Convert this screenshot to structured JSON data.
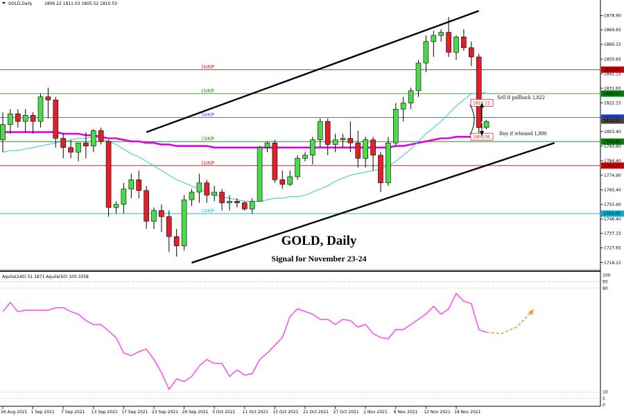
{
  "header": {
    "symbol": "GOLD,Daily",
    "ohlc": "1806.22 1811.03 1805.52 1810.53"
  },
  "chart_data": {
    "type": "candlestick",
    "title": "GOLD, Daily",
    "subtitle": "Signal for November 23-24",
    "ylim": [
      1713,
      1885
    ],
    "price_ticks": [
      "1878.90",
      "1869.65",
      "1860.15",
      "1850.65",
      "1841.15",
      "1831.65",
      "1822.15",
      "1812.65",
      "1803.40",
      "1793.90",
      "1784.40",
      "1774.90",
      "1765.40",
      "1755.90",
      "1746.40",
      "1737.15",
      "1727.65",
      "1718.15"
    ],
    "x_labels": [
      "26 Aug 2021",
      "1 Sep 2021",
      "7 Sep 2021",
      "13 Sep 2021",
      "17 Sep 2021",
      "23 Sep 2021",
      "29 Sep 2021",
      "5 Oct 2021",
      "11 Oct 2021",
      "15 Oct 2021",
      "21 Oct 2021",
      "27 Oct 2021",
      "2 Nov 2021",
      "8 Nov 2021",
      "12 Nov 2021",
      "18 Nov 2021"
    ],
    "x_label_index": [
      0,
      4,
      8,
      12,
      16,
      20,
      24,
      28,
      32,
      36,
      40,
      44,
      48,
      52,
      56,
      60
    ],
    "candles": [
      [
        1798,
        1816,
        1790,
        1808
      ],
      [
        1808,
        1818,
        1802,
        1815
      ],
      [
        1815,
        1818,
        1806,
        1810
      ],
      [
        1810,
        1818,
        1803,
        1814
      ],
      [
        1814,
        1816,
        1802,
        1810
      ],
      [
        1810,
        1828,
        1806,
        1826
      ],
      [
        1826,
        1832,
        1812,
        1824
      ],
      [
        1824,
        1826,
        1793,
        1799
      ],
      [
        1799,
        1802,
        1786,
        1793
      ],
      [
        1793,
        1798,
        1786,
        1790
      ],
      [
        1790,
        1796,
        1784,
        1796
      ],
      [
        1796,
        1803,
        1786,
        1794
      ],
      [
        1794,
        1805,
        1790,
        1804
      ],
      [
        1804,
        1806,
        1795,
        1797
      ],
      [
        1797,
        1798,
        1748,
        1754
      ],
      [
        1754,
        1758,
        1750,
        1756
      ],
      [
        1756,
        1770,
        1750,
        1766
      ],
      [
        1766,
        1776,
        1760,
        1772
      ],
      [
        1772,
        1778,
        1760,
        1765
      ],
      [
        1765,
        1768,
        1740,
        1745
      ],
      [
        1745,
        1754,
        1740,
        1752
      ],
      [
        1752,
        1756,
        1738,
        1748
      ],
      [
        1748,
        1752,
        1725,
        1735
      ],
      [
        1735,
        1740,
        1722,
        1729
      ],
      [
        1729,
        1762,
        1726,
        1759
      ],
      [
        1759,
        1766,
        1755,
        1764
      ],
      [
        1764,
        1776,
        1757,
        1770
      ],
      [
        1770,
        1772,
        1757,
        1762
      ],
      [
        1762,
        1768,
        1758,
        1764
      ],
      [
        1764,
        1766,
        1752,
        1757
      ],
      [
        1757,
        1762,
        1752,
        1758
      ],
      [
        1758,
        1760,
        1754,
        1757
      ],
      [
        1757,
        1758,
        1752,
        1753
      ],
      [
        1753,
        1760,
        1750,
        1758
      ],
      [
        1758,
        1794,
        1758,
        1793
      ],
      [
        1793,
        1797,
        1790,
        1796
      ],
      [
        1796,
        1798,
        1770,
        1772
      ],
      [
        1772,
        1778,
        1766,
        1769
      ],
      [
        1769,
        1778,
        1768,
        1774
      ],
      [
        1774,
        1788,
        1772,
        1786
      ],
      [
        1786,
        1790,
        1784,
        1788
      ],
      [
        1788,
        1800,
        1782,
        1798
      ],
      [
        1798,
        1812,
        1793,
        1810
      ],
      [
        1810,
        1812,
        1788,
        1795
      ],
      [
        1795,
        1802,
        1790,
        1798
      ],
      [
        1798,
        1802,
        1793,
        1799
      ],
      [
        1799,
        1810,
        1790,
        1796
      ],
      [
        1796,
        1804,
        1780,
        1786
      ],
      [
        1786,
        1800,
        1780,
        1798
      ],
      [
        1798,
        1800,
        1778,
        1788
      ],
      [
        1788,
        1790,
        1764,
        1770
      ],
      [
        1770,
        1800,
        1768,
        1796
      ],
      [
        1796,
        1822,
        1794,
        1818
      ],
      [
        1818,
        1826,
        1810,
        1822
      ],
      [
        1822,
        1832,
        1818,
        1830
      ],
      [
        1830,
        1850,
        1826,
        1848
      ],
      [
        1848,
        1866,
        1842,
        1862
      ],
      [
        1862,
        1869,
        1852,
        1866
      ],
      [
        1866,
        1870,
        1862,
        1868
      ],
      [
        1868,
        1878,
        1852,
        1855
      ],
      [
        1855,
        1866,
        1850,
        1865
      ],
      [
        1865,
        1870,
        1856,
        1858
      ],
      [
        1858,
        1862,
        1846,
        1852
      ],
      [
        1852,
        1854,
        1802,
        1806
      ],
      [
        1806,
        1811,
        1805,
        1810
      ]
    ],
    "fib_levels": [
      {
        "label": "[6/8]P",
        "value": 1843.75,
        "tag": "1843.75",
        "color": "#cc0000"
      },
      {
        "label": "[5/8]P",
        "value": 1828.12,
        "tag": "1828.12",
        "color": "#008000"
      },
      {
        "label": "[4/8]P",
        "value": 1812.5,
        "tag": "1812.50",
        "color": "#1a3cff"
      },
      {
        "label": "[3/8]P",
        "value": 1796.88,
        "tag": "1796.88",
        "color": "#008000"
      },
      {
        "label": "[2/8]P",
        "value": 1781.25,
        "tag": "1781.25",
        "color": "#cc0000"
      },
      {
        "label": "[1/8]P",
        "value": 1750.0,
        "tag": "1750.00",
        "color": "#00b0d0"
      }
    ],
    "right_tags": [
      {
        "text": "1810.53",
        "value": 1810.53,
        "color": "#444444"
      }
    ],
    "sma_fast": [
      1790,
      1791,
      1791,
      1792,
      1793,
      1794,
      1795,
      1796,
      1797,
      1798,
      1799,
      1799,
      1800,
      1799,
      1797,
      1795,
      1792,
      1789,
      1787,
      1784,
      1781,
      1778,
      1775,
      1772,
      1770,
      1768,
      1766,
      1764,
      1762,
      1761,
      1760,
      1759,
      1758,
      1758,
      1758,
      1759,
      1760,
      1760,
      1761,
      1761,
      1762,
      1764,
      1766,
      1768,
      1771,
      1773,
      1775,
      1776,
      1777,
      1778,
      1779,
      1781,
      1784,
      1788,
      1792,
      1797,
      1802,
      1806,
      1810,
      1815,
      1820,
      1824,
      1828,
      1828,
      1829
    ],
    "sma_slow": [
      1803,
      1803,
      1803,
      1803,
      1803,
      1803,
      1803,
      1803,
      1802,
      1802,
      1802,
      1801,
      1801,
      1800,
      1799,
      1799,
      1798,
      1797,
      1797,
      1796,
      1796,
      1795,
      1795,
      1794,
      1794,
      1794,
      1794,
      1794,
      1793,
      1793,
      1793,
      1793,
      1793,
      1793,
      1793,
      1793,
      1793,
      1793,
      1793,
      1793,
      1793,
      1793,
      1793,
      1793,
      1793,
      1793,
      1793,
      1793,
      1793,
      1793,
      1793,
      1793,
      1794,
      1794,
      1795,
      1796,
      1797,
      1798,
      1799,
      1799,
      1800,
      1800,
      1800,
      1801,
      1801
    ],
    "annotations": {
      "sell_text": "Sell if pullback 1,822",
      "buy_text": "Buy if rebound 1,800",
      "sell_tag": "1822.12",
      "sell_value": 1822.12,
      "buy_tag": "1800.06",
      "buy_value": 1800.06
    },
    "channel": {
      "upper": [
        [
          19,
          1803
        ],
        [
          63,
          1882
        ]
      ],
      "lower": [
        [
          25,
          1718
        ],
        [
          73,
          1796
        ]
      ]
    },
    "indicator": {
      "label": "Aquila(240) 51.1871  Aquila(50) 100.3358",
      "ylim": [
        0,
        100
      ],
      "ticks": [
        "100",
        "95",
        "90",
        "10",
        "5",
        "0"
      ],
      "values": [
        72,
        79,
        72,
        73,
        73,
        73,
        73,
        75,
        75,
        72,
        70,
        65,
        62,
        62,
        57,
        52,
        40,
        38,
        41,
        43,
        35,
        25,
        12,
        20,
        18,
        22,
        30,
        35,
        32,
        32,
        22,
        27,
        23,
        24,
        35,
        40,
        46,
        52,
        68,
        74,
        72,
        70,
        66,
        66,
        62,
        66,
        65,
        60,
        62,
        55,
        52,
        51,
        58,
        58,
        62,
        66,
        70,
        76,
        70,
        74,
        86,
        80,
        78,
        58,
        56
      ],
      "projection": [
        [
          64,
          56
        ],
        [
          66,
          55
        ],
        [
          68,
          60
        ],
        [
          70,
          72
        ]
      ]
    }
  }
}
